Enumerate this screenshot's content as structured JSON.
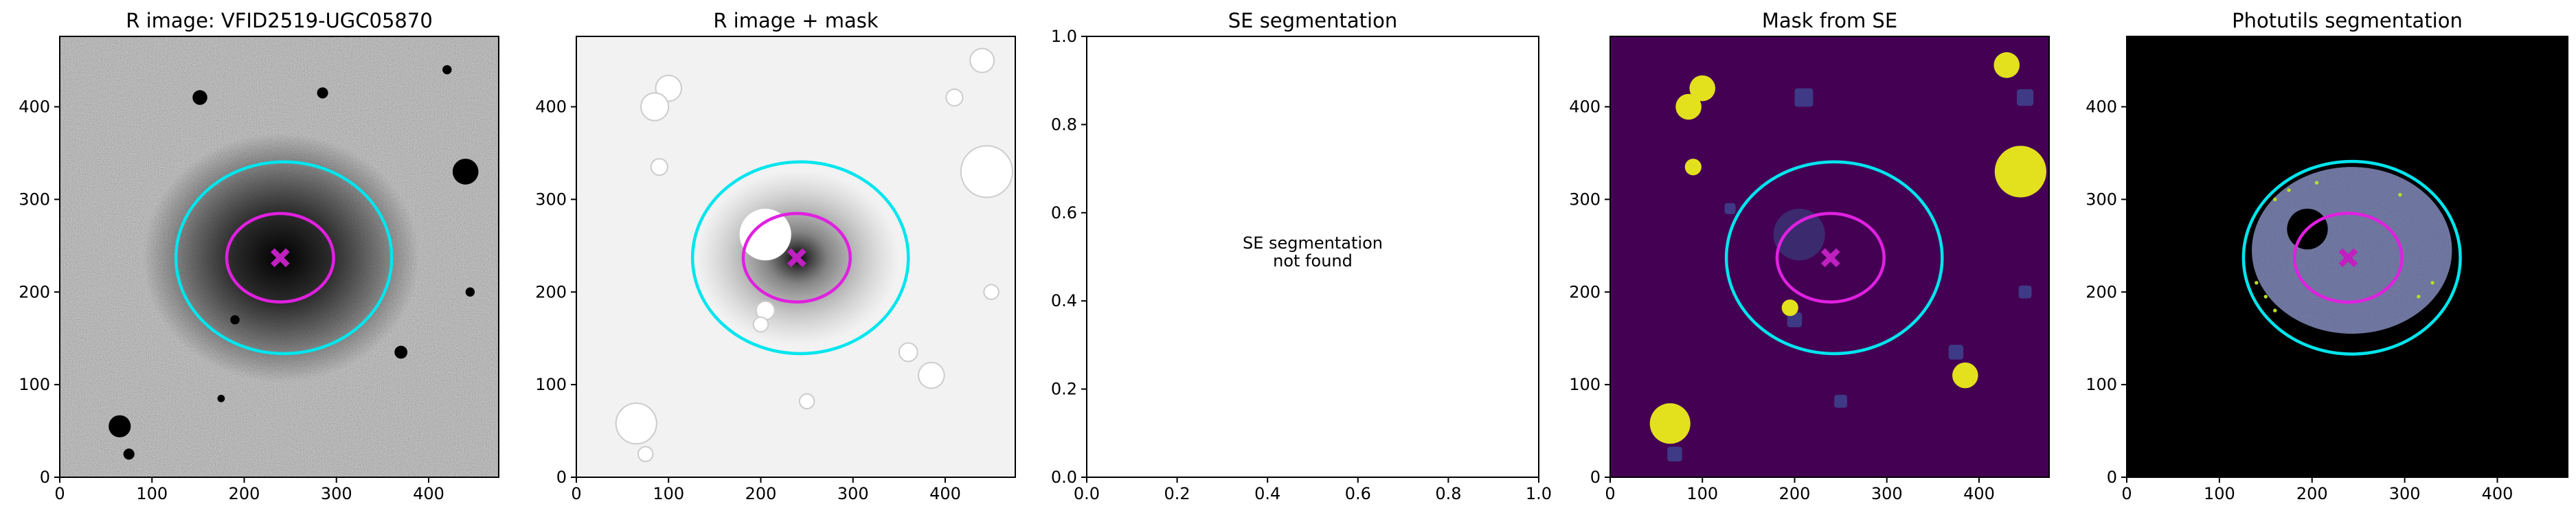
{
  "chart_data": [
    {
      "type": "image",
      "title": "R image: VFID2519-UGC05870",
      "cmap": "gray",
      "xlim": [
        0,
        476
      ],
      "ylim": [
        0,
        476
      ],
      "xticks": [
        0,
        100,
        200,
        300,
        400
      ],
      "yticks": [
        0,
        100,
        200,
        300,
        400
      ],
      "ellipses": [
        {
          "color": "#00e5ee",
          "cx": 243,
          "cy": 237,
          "rx": 117,
          "ry": 104
        },
        {
          "color": "#e020e0",
          "cx": 239,
          "cy": 237,
          "rx": 58,
          "ry": 48
        }
      ],
      "marker": {
        "x": 239,
        "y": 237,
        "color": "#c020c0"
      }
    },
    {
      "type": "image",
      "title": "R image + mask",
      "cmap": "gray_r",
      "xlim": [
        0,
        476
      ],
      "ylim": [
        0,
        476
      ],
      "xticks": [
        0,
        100,
        200,
        300,
        400
      ],
      "yticks": [
        0,
        100,
        200,
        300,
        400
      ],
      "ellipses": [
        {
          "color": "#00e5ee",
          "cx": 243,
          "cy": 237,
          "rx": 117,
          "ry": 104
        },
        {
          "color": "#e020e0",
          "cx": 239,
          "cy": 237,
          "rx": 58,
          "ry": 48
        }
      ],
      "marker": {
        "x": 239,
        "y": 237,
        "color": "#c020c0"
      }
    },
    {
      "type": "empty",
      "title": "SE segmentation",
      "xlim": [
        0,
        1
      ],
      "ylim": [
        0,
        1
      ],
      "xticks": [
        {
          "value": 0,
          "label": "0.0"
        },
        0.2,
        0.4,
        0.6,
        0.8,
        {
          "value": 1,
          "label": "1.0"
        }
      ],
      "yticks": [
        {
          "value": 0,
          "label": "0.0"
        },
        0.2,
        0.4,
        0.6,
        0.8,
        {
          "value": 1,
          "label": "1.0"
        }
      ],
      "annotation": [
        "SE segmentation",
        "not found"
      ]
    },
    {
      "type": "image",
      "title": "Mask from SE",
      "cmap": "viridis",
      "xlim": [
        0,
        476
      ],
      "ylim": [
        0,
        476
      ],
      "xticks": [
        0,
        100,
        200,
        300,
        400
      ],
      "yticks": [
        0,
        100,
        200,
        300,
        400
      ],
      "ellipses": [
        {
          "color": "#00e5ee",
          "cx": 243,
          "cy": 237,
          "rx": 117,
          "ry": 104
        },
        {
          "color": "#e020e0",
          "cx": 239,
          "cy": 237,
          "rx": 58,
          "ry": 48
        }
      ],
      "marker": {
        "x": 239,
        "y": 237,
        "color": "#c020c0"
      }
    },
    {
      "type": "image",
      "title": "Photutils segmentation",
      "cmap": "segmentation",
      "xlim": [
        0,
        476
      ],
      "ylim": [
        0,
        476
      ],
      "xticks": [
        0,
        100,
        200,
        300,
        400
      ],
      "yticks": [
        0,
        100,
        200,
        300,
        400
      ],
      "ellipses": [
        {
          "color": "#00e5ee",
          "cx": 243,
          "cy": 237,
          "rx": 117,
          "ry": 104
        },
        {
          "color": "#e020e0",
          "cx": 239,
          "cy": 237,
          "rx": 58,
          "ry": 48
        }
      ],
      "marker": {
        "x": 239,
        "y": 237,
        "color": "#c020c0"
      }
    }
  ]
}
